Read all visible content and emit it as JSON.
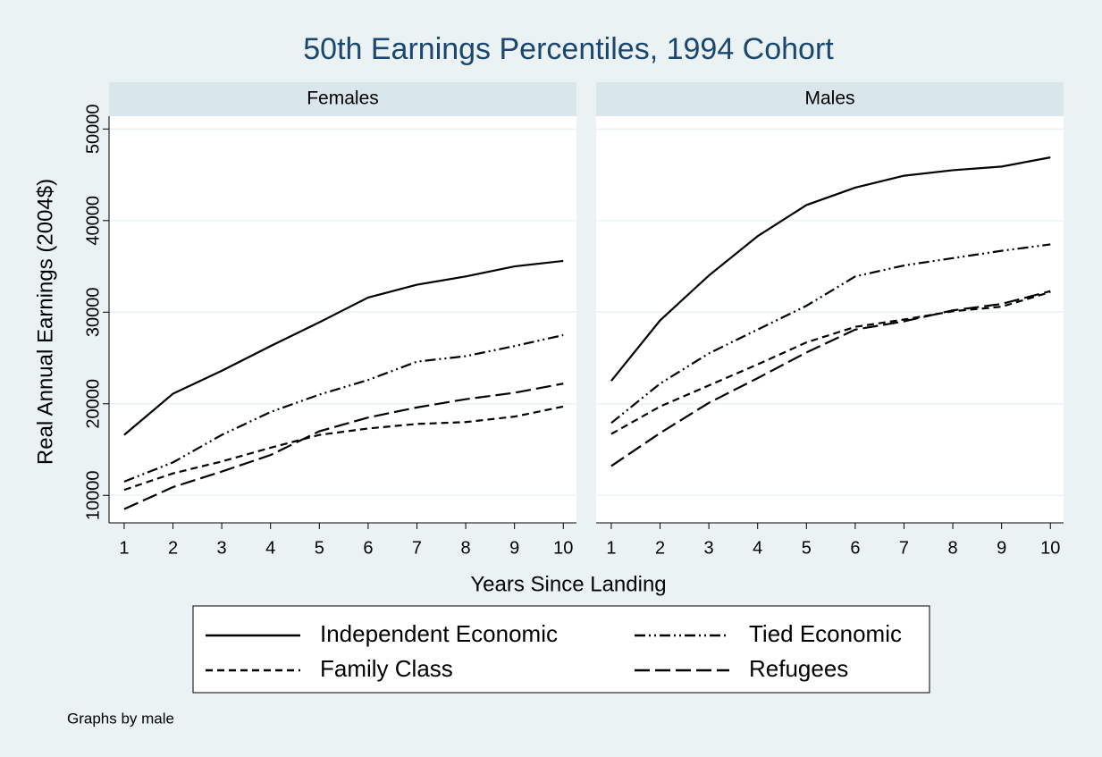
{
  "title": "50th Earnings Percentiles, 1994 Cohort",
  "xlabel": "Years Since Landing",
  "ylabel": "Real Annual Earnings (2004$)",
  "note": "Graphs by male",
  "chart_data": [
    {
      "type": "line",
      "title": "Females",
      "x": [
        1,
        2,
        3,
        4,
        5,
        6,
        7,
        8,
        9,
        10
      ],
      "xlim": [
        0.69,
        10.27
      ],
      "xticks": [
        1,
        2,
        3,
        4,
        5,
        6,
        7,
        8,
        9,
        10
      ],
      "ylim": [
        7000,
        51400
      ],
      "yticks": [
        10000,
        20000,
        30000,
        40000,
        50000
      ],
      "grid": true,
      "series": [
        {
          "name": "Independent Economic",
          "color": "#000000",
          "style": "solid",
          "values": [
            16600,
            21100,
            23600,
            26300,
            28900,
            31600,
            33000,
            33900,
            35000,
            35600
          ]
        },
        {
          "name": "Tied Economic",
          "color": "#000000",
          "style": "dash-dot-dot",
          "values": [
            11500,
            13600,
            16600,
            19100,
            21000,
            22600,
            24600,
            25200,
            26300,
            27500
          ]
        },
        {
          "name": "Family Class",
          "color": "#000000",
          "style": "dash",
          "values": [
            10600,
            12400,
            13700,
            15200,
            16600,
            17300,
            17800,
            18000,
            18600,
            19700
          ]
        },
        {
          "name": "Refugees",
          "color": "#000000",
          "style": "long-dash",
          "values": [
            8500,
            10900,
            12600,
            14400,
            17000,
            18500,
            19600,
            20500,
            21200,
            22200
          ]
        }
      ]
    },
    {
      "type": "line",
      "title": "Males",
      "x": [
        1,
        2,
        3,
        4,
        5,
        6,
        7,
        8,
        9,
        10
      ],
      "xlim": [
        0.69,
        10.27
      ],
      "xticks": [
        1,
        2,
        3,
        4,
        5,
        6,
        7,
        8,
        9,
        10
      ],
      "ylim": [
        7000,
        51400
      ],
      "yticks": [
        10000,
        20000,
        30000,
        40000,
        50000
      ],
      "grid": true,
      "series": [
        {
          "name": "Independent Economic",
          "color": "#000000",
          "style": "solid",
          "values": [
            22500,
            29100,
            34000,
            38300,
            41700,
            43600,
            44900,
            45500,
            45900,
            46900
          ]
        },
        {
          "name": "Tied Economic",
          "color": "#000000",
          "style": "dash-dot-dot",
          "values": [
            17900,
            22200,
            25500,
            28100,
            30700,
            33900,
            35100,
            35900,
            36700,
            37400
          ]
        },
        {
          "name": "Family Class",
          "color": "#000000",
          "style": "dash",
          "values": [
            16700,
            19700,
            22000,
            24300,
            26700,
            28400,
            29200,
            30100,
            30600,
            32200
          ]
        },
        {
          "name": "Refugees",
          "color": "#000000",
          "style": "long-dash",
          "values": [
            13200,
            16800,
            20100,
            22800,
            25600,
            28100,
            29000,
            30200,
            30900,
            32300
          ]
        }
      ]
    }
  ]
}
